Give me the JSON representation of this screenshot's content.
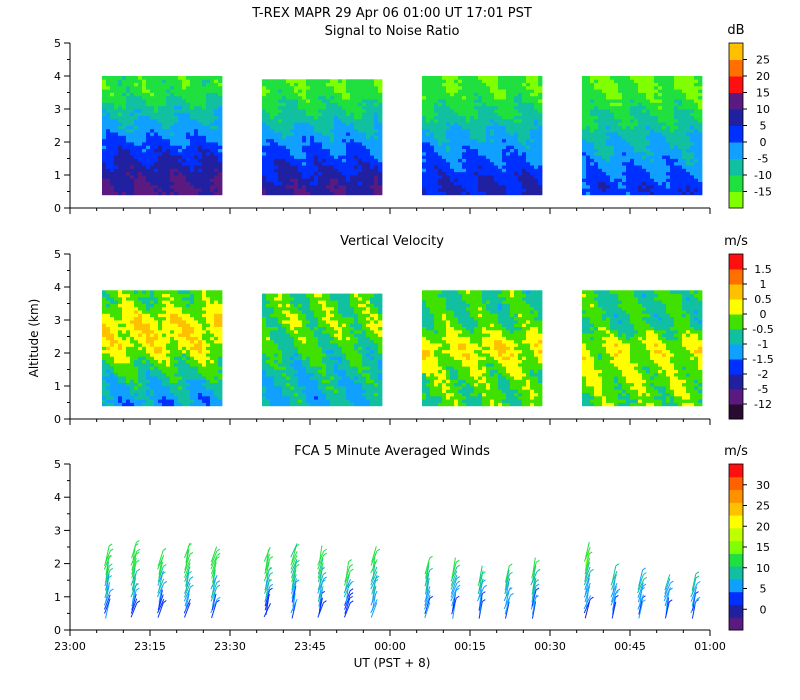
{
  "figure": {
    "title": "T-REX  MAPR 29 Apr 06  01:00 UT  17:01  PST"
  },
  "chart_data": [
    {
      "type": "heatmap",
      "title": "Signal to Noise Ratio",
      "xlabel": "",
      "ylabel": "",
      "xlim": [
        "23:00",
        "01:00"
      ],
      "ylim": [
        0,
        5
      ],
      "yticks": [
        "0",
        "1",
        "2",
        "3",
        "4",
        "5"
      ],
      "colorbar": {
        "unit": "dB",
        "ticks": [
          "-15",
          "-10",
          "-5",
          "0",
          "5",
          "10",
          "15",
          "20",
          "25"
        ],
        "colors": [
          "#80ff00",
          "#20e040",
          "#10c0a0",
          "#10a0ff",
          "#0030ff",
          "#2020a0",
          "#5a1a80",
          "#ff1010",
          "#ff7000",
          "#ffc000"
        ]
      },
      "data_blocks": [
        {
          "start": "23:06",
          "end": "23:28",
          "top_km": 4.0
        },
        {
          "start": "23:36",
          "end": "23:58",
          "top_km": 3.9
        },
        {
          "start": "00:06",
          "end": "00:28",
          "top_km": 4.0
        },
        {
          "start": "00:36",
          "end": "00:58",
          "top_km": 4.0
        }
      ],
      "profile_levels_km": [
        0.6,
        1.4,
        2.2,
        2.9,
        3.6
      ],
      "block_profiles_db": [
        [
          11,
          6,
          -1,
          -7,
          -13
        ],
        [
          9,
          3,
          -3,
          -9,
          -14
        ],
        [
          6,
          1,
          -4,
          -10,
          -14
        ],
        [
          3,
          -2,
          -6,
          -11,
          -15
        ]
      ]
    },
    {
      "type": "heatmap",
      "title": "Vertical Velocity",
      "xlabel": "",
      "ylabel": "Altitude (km)",
      "xlim": [
        "23:00",
        "01:00"
      ],
      "ylim": [
        0,
        5
      ],
      "yticks": [
        "0",
        "1",
        "2",
        "3",
        "4",
        "5"
      ],
      "colorbar": {
        "unit": "m/s",
        "ticks": [
          "-12",
          "-5",
          "-2",
          "-1.5",
          "-1",
          "-0.5",
          "0",
          "0.5",
          "1",
          "1.5"
        ],
        "colors": [
          "#2a0a30",
          "#5a1a80",
          "#2020a0",
          "#0030ff",
          "#10a0ff",
          "#10c0a0",
          "#40e000",
          "#ffff00",
          "#ffc000",
          "#ff7000",
          "#ff1010"
        ]
      },
      "data_blocks": [
        {
          "start": "23:06",
          "end": "23:28",
          "top_km": 3.9
        },
        {
          "start": "23:36",
          "end": "23:58",
          "top_km": 3.8
        },
        {
          "start": "00:06",
          "end": "00:28",
          "top_km": 3.9
        },
        {
          "start": "00:36",
          "end": "00:58",
          "top_km": 3.9
        }
      ],
      "profile_levels_km": [
        0.6,
        1.4,
        2.2,
        2.9,
        3.6
      ],
      "block_profiles_ms": [
        [
          -1.2,
          -0.6,
          0.2,
          0.4,
          -0.3
        ],
        [
          -1.0,
          -0.8,
          -0.5,
          -0.2,
          -0.4
        ],
        [
          -0.4,
          -0.2,
          0.3,
          -0.4,
          -0.5
        ],
        [
          -0.3,
          -0.1,
          0.1,
          -0.6,
          -0.5
        ]
      ]
    },
    {
      "type": "scatter",
      "title": "FCA 5 Minute Averaged Winds",
      "xlabel": "UT  (PST + 8)",
      "ylabel": "",
      "xlim": [
        "23:00",
        "01:00"
      ],
      "ylim": [
        0,
        5
      ],
      "yticks": [
        "0",
        "1",
        "2",
        "3",
        "4",
        "5"
      ],
      "xticks": [
        "23:00",
        "23:15",
        "23:30",
        "23:45",
        "00:00",
        "00:15",
        "00:30",
        "00:45",
        "01:00"
      ],
      "colorbar": {
        "unit": "m/s",
        "ticks": [
          "0",
          "5",
          "10",
          "15",
          "20",
          "25",
          "30"
        ],
        "colors": [
          "#5a1a80",
          "#2020a0",
          "#0030ff",
          "#10a0ff",
          "#10c0a0",
          "#20e040",
          "#80ff00",
          "#c0ff00",
          "#ffff00",
          "#ffc000",
          "#ff9000",
          "#ff6000",
          "#ff1010"
        ]
      },
      "profile_times_min": [
        7,
        12,
        17,
        22,
        27,
        37,
        42,
        47,
        52,
        57,
        67,
        72,
        77,
        82,
        87,
        97,
        102,
        107,
        112,
        117
      ],
      "profile_tops_km": [
        2.3,
        2.5,
        2.2,
        2.5,
        2.3,
        2.3,
        2.5,
        2.3,
        1.9,
        2.3,
        2.0,
        2.0,
        1.8,
        1.8,
        2.0,
        2.5,
        1.8,
        1.6,
        1.5,
        1.5
      ],
      "barb_levels_km": [
        0.6,
        0.9,
        1.2,
        1.5,
        1.8,
        2.1
      ],
      "typical_speed_ms": [
        6,
        7,
        9,
        10,
        12,
        13
      ]
    }
  ]
}
